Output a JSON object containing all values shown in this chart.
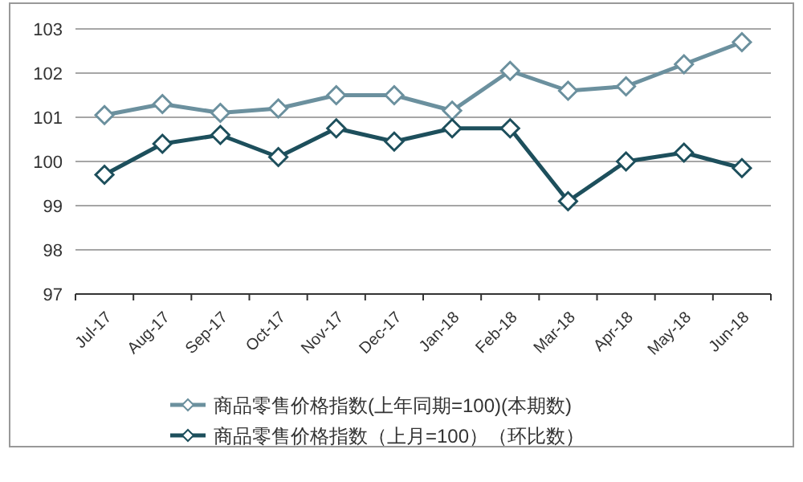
{
  "chart_data": {
    "type": "line",
    "categories": [
      "Jul-17",
      "Aug-17",
      "Sep-17",
      "Oct-17",
      "Nov-17",
      "Dec-17",
      "Jan-18",
      "Feb-18",
      "Mar-18",
      "Apr-18",
      "May-18",
      "Jun-18"
    ],
    "series": [
      {
        "name": "商品零售价格指数(上年同期=100)(本期数)",
        "color": "#6b909e",
        "values": [
          101.05,
          101.3,
          101.1,
          101.2,
          101.5,
          101.5,
          101.15,
          102.05,
          101.6,
          101.7,
          102.2,
          102.7
        ]
      },
      {
        "name": "商品零售价格指数（上月=100）（环比数）",
        "color": "#1d4f5c",
        "values": [
          99.7,
          100.4,
          100.6,
          100.1,
          100.75,
          100.45,
          100.75,
          100.75,
          99.1,
          100.0,
          100.2,
          99.85
        ]
      }
    ],
    "ylim": [
      97,
      103
    ],
    "yticks": [
      97,
      98,
      99,
      100,
      101,
      102,
      103
    ],
    "grid": "y",
    "legend": "bottom",
    "marker": "diamond",
    "line_style": "solid"
  }
}
